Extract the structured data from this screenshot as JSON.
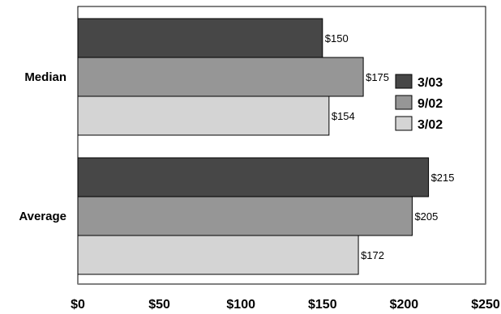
{
  "chart_data": {
    "type": "bar",
    "orientation": "horizontal",
    "categories": [
      "Median",
      "Average"
    ],
    "series": [
      {
        "name": "3/03",
        "color": "#474747",
        "values": [
          150,
          215
        ],
        "labels": [
          "$150",
          "$215"
        ]
      },
      {
        "name": "9/02",
        "color": "#969696",
        "values": [
          175,
          205
        ],
        "labels": [
          "$175",
          "$205"
        ]
      },
      {
        "name": "3/02",
        "color": "#d4d4d4",
        "values": [
          154,
          172
        ],
        "labels": [
          "$154",
          "$172"
        ]
      }
    ],
    "xlim": [
      0,
      250
    ],
    "ticks": [
      0,
      50,
      100,
      150,
      200,
      250
    ],
    "tick_labels": [
      "$0",
      "$50",
      "$100",
      "$150",
      "$200",
      "$250"
    ],
    "grid": false,
    "legend": "right"
  }
}
